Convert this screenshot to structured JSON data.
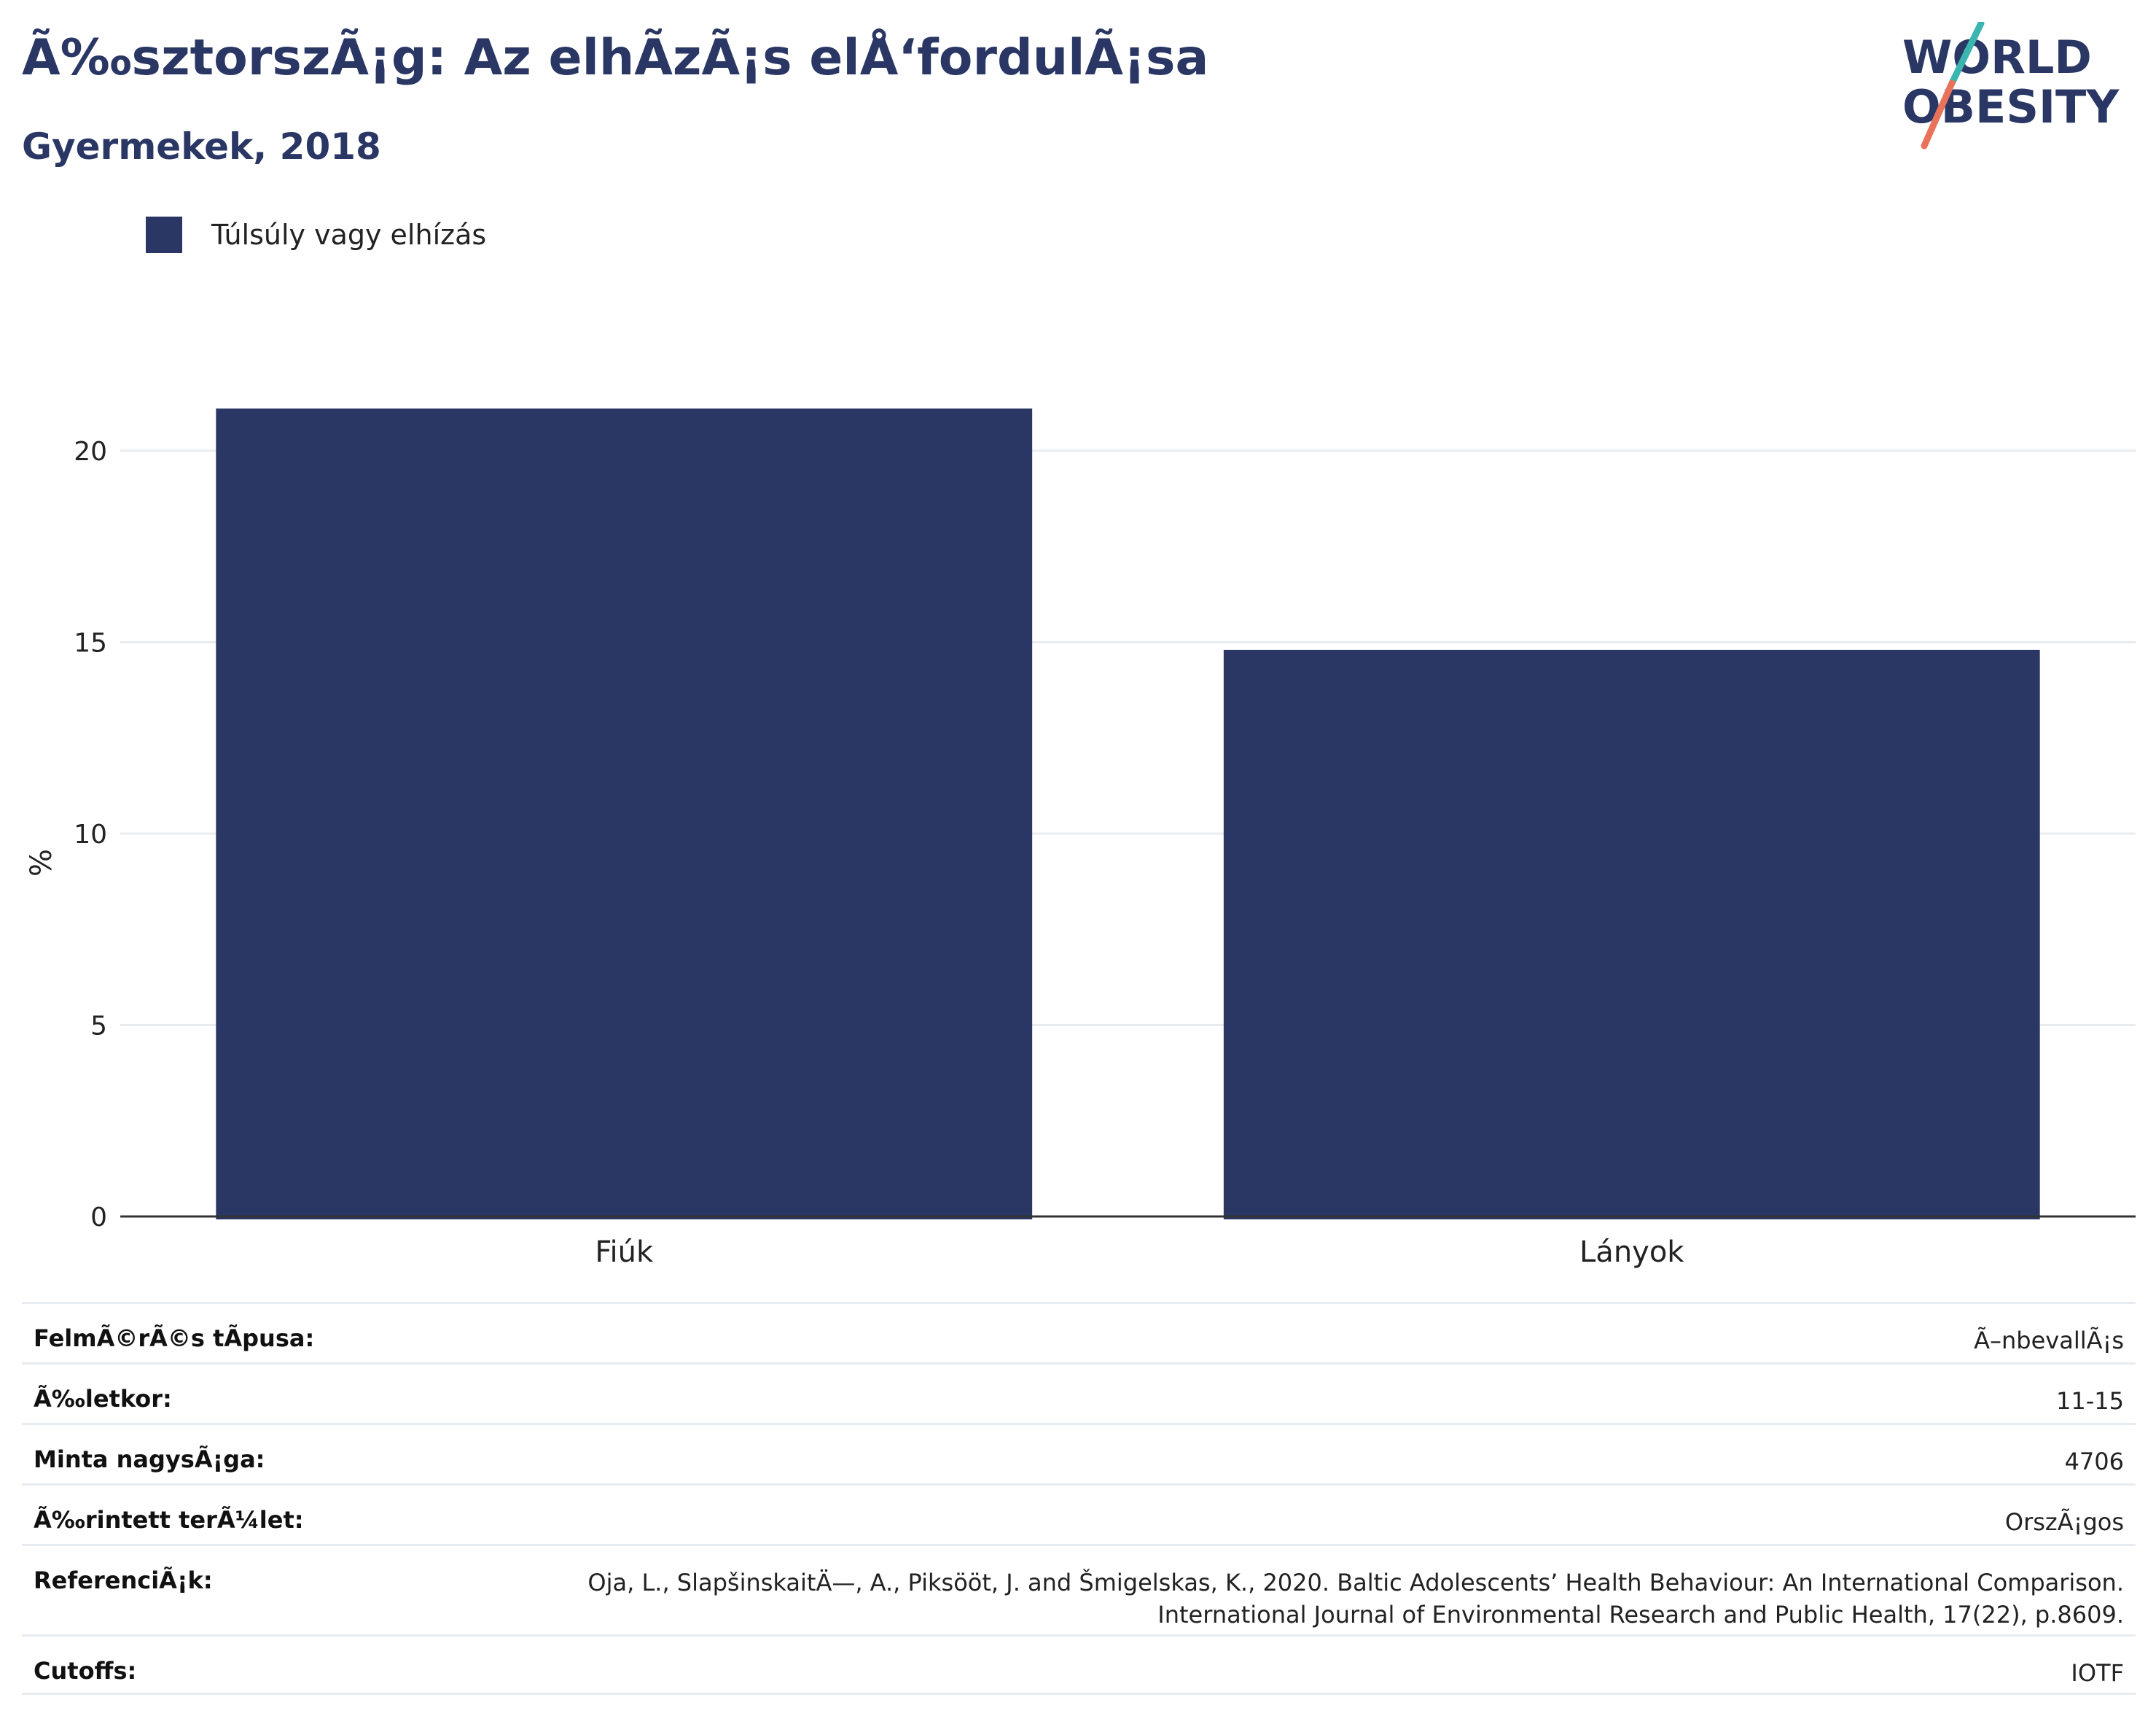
{
  "header": {
    "title": "Ã‰sztorszÃ¡g: Az elhÃ­zÃ¡s elÅ‘fordulÃ¡sa",
    "subtitle": "Gyermekek, 2018"
  },
  "logo": {
    "line1": "WORLD",
    "line2": "OBESITY",
    "accent_teal": "#3ab5b0",
    "accent_coral": "#e8735a"
  },
  "legend": {
    "label": "Túlsúly vagy elhízás",
    "color": "#2a3764"
  },
  "chart_data": {
    "type": "bar",
    "categories": [
      "Fiúk",
      "Lányok"
    ],
    "series": [
      {
        "name": "Túlsúly vagy elhízás",
        "values": [
          21.1,
          14.8
        ],
        "color": "#2a3764"
      }
    ],
    "ylabel": "%",
    "xlabel": "",
    "ylim": [
      0,
      21.1
    ],
    "yticks": [
      0,
      5,
      10,
      15,
      20
    ],
    "grid": true,
    "legend_position": "top-left"
  },
  "meta": [
    {
      "key": "FelmÃ©rÃ©s tÃpusa:",
      "value": [
        "Ã–nbevallÃ¡s"
      ]
    },
    {
      "key": "Ã‰letkor:",
      "value": [
        "11-15"
      ]
    },
    {
      "key": "Minta nagysÃ¡ga:",
      "value": [
        "4706"
      ]
    },
    {
      "key": "Ã‰rintett terÃ¼let:",
      "value": [
        "OrszÃ¡gos"
      ]
    },
    {
      "key": "ReferenciÃ¡k:",
      "value": [
        "Oja, L., SlapšinskaitÄ—, A., Piksööt, J. and Šmigelskas, K., 2020. Baltic Adolescents’ Health Behaviour: An International Comparison.",
        "International Journal of Environmental Research and Public Health, 17(22), p.8609."
      ]
    },
    {
      "key": "Cutoffs:",
      "value": [
        "IOTF"
      ]
    }
  ]
}
